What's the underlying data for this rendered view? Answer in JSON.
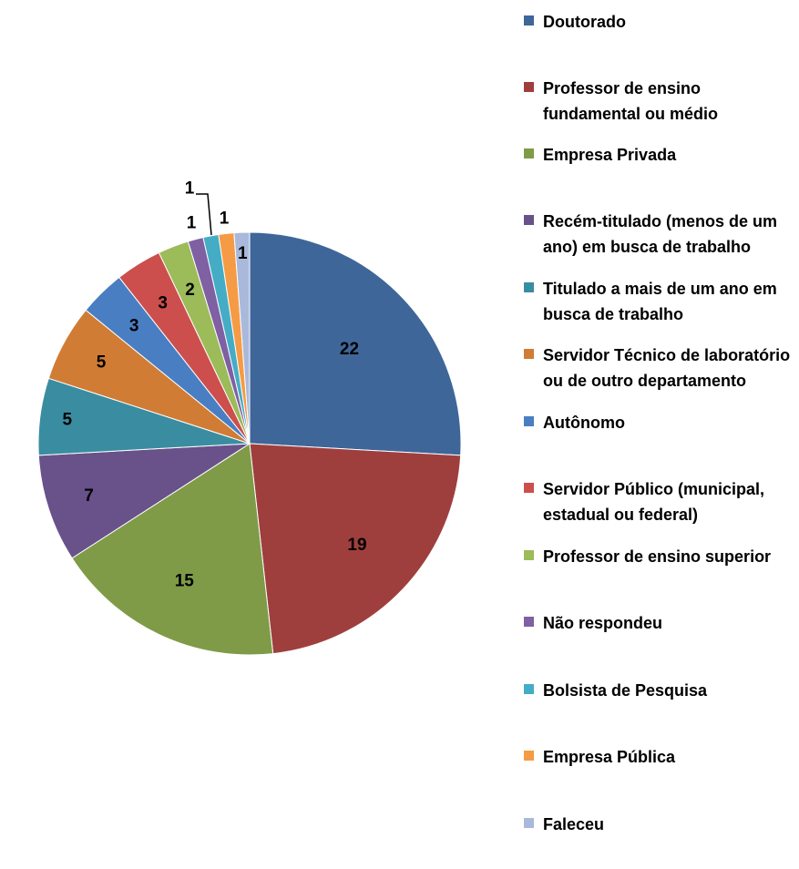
{
  "chart_data": {
    "type": "pie",
    "title": "",
    "legend_position": "right",
    "slices": [
      {
        "label": "Doutorado",
        "value": 22,
        "color": "#3E6699"
      },
      {
        "label": "Professor de ensino fundamental ou médio",
        "value": 19,
        "color": "#9E3F3E"
      },
      {
        "label": "Empresa Privada",
        "value": 15,
        "color": "#7F9B48"
      },
      {
        "label": "Recém-titulado (menos de um ano) em busca de trabalho",
        "value": 7,
        "color": "#69518A"
      },
      {
        "label": "Titulado a mais de um ano em busca de trabalho",
        "value": 5,
        "color": "#3A8DA1"
      },
      {
        "label": "Servidor Técnico de laboratório ou de outro departamento",
        "value": 5,
        "color": "#D07C35"
      },
      {
        "label": "Autônomo",
        "value": 3,
        "color": "#4A7EC2"
      },
      {
        "label": "Servidor Público (municipal, estadual ou federal)",
        "value": 3,
        "color": "#CC4F4D"
      },
      {
        "label": "Professor de ensino superior",
        "value": 2,
        "color": "#9CBB59"
      },
      {
        "label": "Não respondeu",
        "value": 1,
        "color": "#7E60A3"
      },
      {
        "label": "Bolsista de Pesquisa",
        "value": 1,
        "color": "#45ACC6"
      },
      {
        "label": "Empresa Pública",
        "value": 1,
        "color": "#F59B45"
      },
      {
        "label": "Faleceu",
        "value": 1,
        "color": "#A9B9DC"
      }
    ]
  }
}
